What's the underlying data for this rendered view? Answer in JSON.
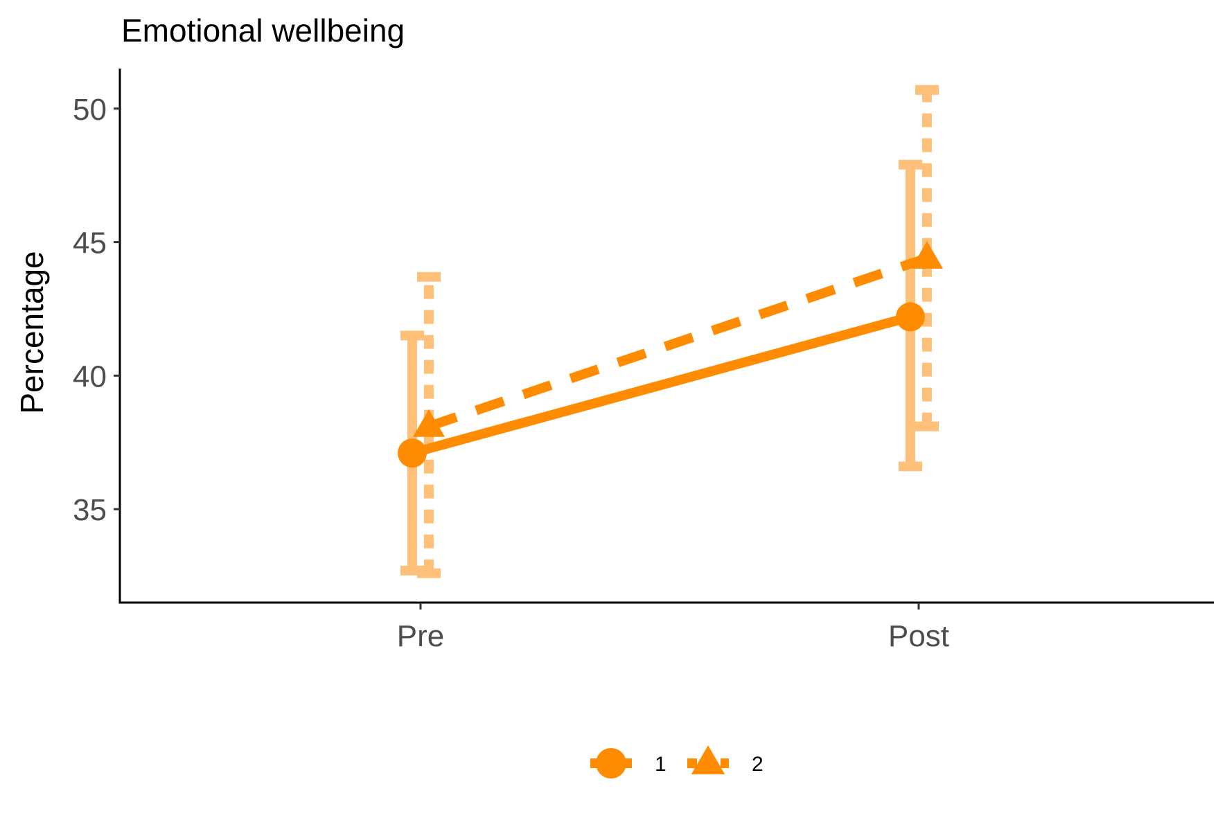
{
  "chart_data": {
    "type": "line",
    "title": "Emotional wellbeing",
    "xlabel": "",
    "ylabel": "Percentage",
    "categories": [
      "Pre",
      "Post"
    ],
    "ylim": [
      31.5,
      51.5
    ],
    "yticks": [
      35,
      40,
      45,
      50
    ],
    "grid": false,
    "legend_position": "bottom",
    "colors": {
      "line": "#ff8c00",
      "errorbar": "#ffc07a"
    },
    "series": [
      {
        "name": "1",
        "marker": "circle",
        "linestyle": "solid",
        "values": [
          37.1,
          42.2
        ],
        "lower": [
          32.7,
          36.6
        ],
        "upper": [
          41.5,
          47.9
        ]
      },
      {
        "name": "2",
        "marker": "triangle",
        "linestyle": "dashed",
        "values": [
          38.1,
          44.4
        ],
        "lower": [
          32.6,
          38.1
        ],
        "upper": [
          43.7,
          50.7
        ]
      }
    ]
  }
}
